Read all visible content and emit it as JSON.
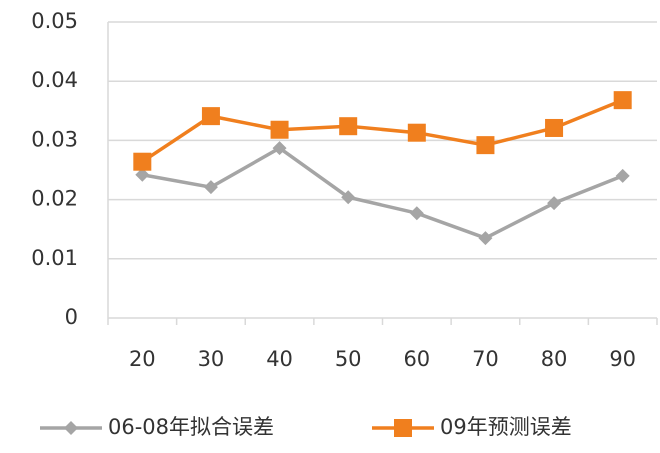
{
  "chart_data": {
    "type": "line",
    "categories": [
      "20",
      "30",
      "40",
      "50",
      "60",
      "70",
      "80",
      "90"
    ],
    "series": [
      {
        "name": "06-08年拟合误差",
        "color": "#a5a5a5",
        "marker": "diamond",
        "values": [
          0.0242,
          0.0221,
          0.0287,
          0.0204,
          0.0177,
          0.0135,
          0.0194,
          0.024
        ]
      },
      {
        "name": "09年预测误差",
        "color": "#f07f1e",
        "marker": "square",
        "values": [
          0.0264,
          0.0341,
          0.0318,
          0.0324,
          0.0313,
          0.0292,
          0.0321,
          0.0368
        ]
      }
    ],
    "ylim": [
      0,
      0.05
    ],
    "yticks": [
      0,
      0.01,
      0.02,
      0.03,
      0.04,
      0.05
    ],
    "grid": true,
    "legend": "bottom"
  }
}
